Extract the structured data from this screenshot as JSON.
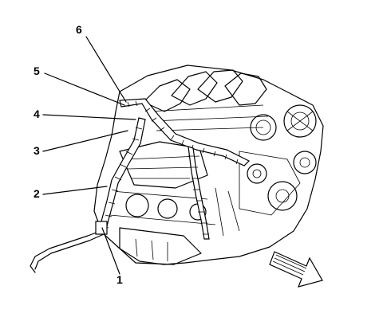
{
  "callouts": [
    {
      "id": "1",
      "label": "1"
    },
    {
      "id": "2",
      "label": "2"
    },
    {
      "id": "3",
      "label": "3"
    },
    {
      "id": "4",
      "label": "4"
    },
    {
      "id": "5",
      "label": "5"
    },
    {
      "id": "6",
      "label": "6"
    }
  ],
  "icons": {
    "direction_arrow": "front-direction-arrow-icon"
  }
}
